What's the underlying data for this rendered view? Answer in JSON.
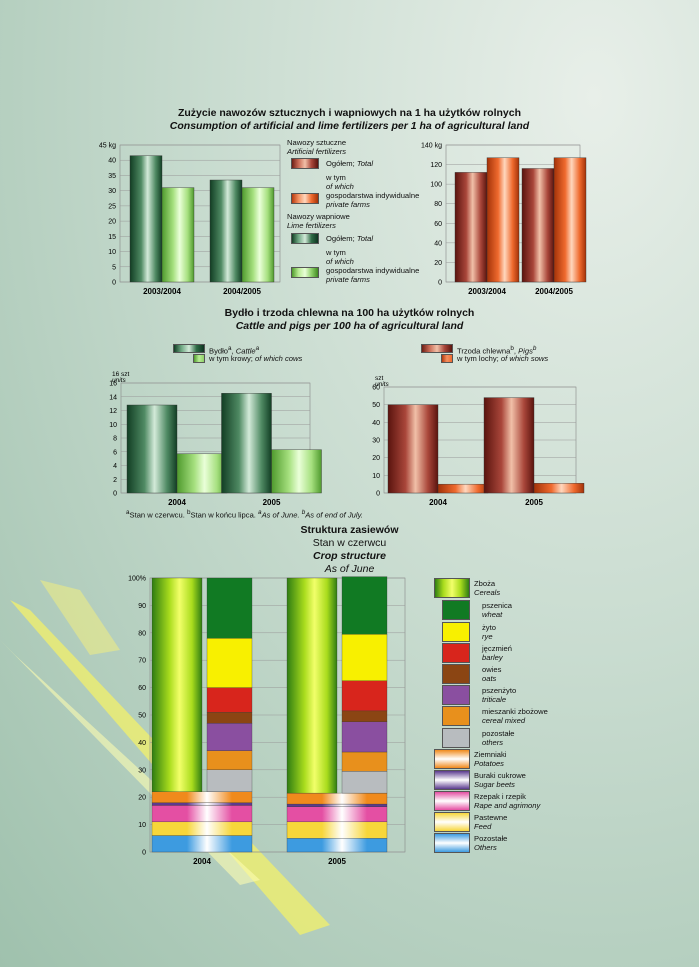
{
  "colors": {
    "green_dark": "#2e6b45",
    "green_light": "#8fd16a",
    "brown": "#a9463a",
    "orange": "#ef6a2e"
  },
  "section1": {
    "title_pl": "Zużycie nawozów sztucznych i wapniowych na 1 ha użytków rolnych",
    "title_en": "Consumption of artificial and lime fertilizers per 1 ha of agricultural land",
    "legend": {
      "artificial_pl": "Nawozy sztuczne",
      "artificial_en": "Artificial fertilizers",
      "total_pl": "Ogółem;",
      "total_en": "Total",
      "whichof_pl": "w tym",
      "whichof_en": "of which",
      "private_pl": "gospodarstwa indywidualne",
      "private_en": "private farms",
      "lime_pl": "Nawozy wapniowe",
      "lime_en": "Lime fertilizers"
    }
  },
  "section2": {
    "title_pl": "Bydło i trzoda chlewna na 100 ha użytków rolnych",
    "title_en": "Cattle and pigs per 100 ha of agricultural land",
    "legend": {
      "cattle_pl": "Bydło",
      "cattle_en": "Cattle",
      "cows_pl": "w tym krowy;",
      "cows_en": "of which cows",
      "pigs_pl": "Trzoda chlewna",
      "pigs_en": "Pigs",
      "sows_pl": "w tym lochy;",
      "sows_en": "of which sows"
    },
    "footnote": {
      "a_pl": "Stan w czerwcu.",
      "b_pl": "Stan w końcu lipca.",
      "a_en": "As of June.",
      "b_en": "As of end of July."
    }
  },
  "section3": {
    "title_pl": "Struktura zasiewów",
    "subtitle_pl": "Stan w czerwcu",
    "title_en": "Crop structure",
    "subtitle_en": "As of June"
  },
  "chart_data": [
    {
      "type": "bar",
      "categories": [
        "2003/2004",
        "2004/2005"
      ],
      "ylim": [
        0,
        45
      ],
      "yticks": [
        0,
        5,
        10,
        15,
        20,
        25,
        30,
        35,
        40,
        45
      ],
      "yunit": "kg",
      "series": [
        {
          "values": [
            41.5,
            33.5
          ]
        },
        {
          "values": [
            31,
            31
          ]
        }
      ]
    },
    {
      "type": "bar",
      "categories": [
        "2003/2004",
        "2004/2005"
      ],
      "ylim": [
        0,
        140
      ],
      "yticks": [
        0,
        20,
        40,
        60,
        80,
        100,
        120,
        140
      ],
      "yunit": "kg",
      "series": [
        {
          "values": [
            112,
            116
          ]
        },
        {
          "values": [
            127,
            127
          ]
        }
      ]
    },
    {
      "type": "bar",
      "categories": [
        "2004",
        "2005"
      ],
      "ylim": [
        0,
        16
      ],
      "yticks": [
        0,
        2,
        4,
        6,
        8,
        10,
        12,
        14,
        16
      ],
      "yunit_pl": "szt",
      "yunit_en": "units",
      "series": [
        {
          "values": [
            12.8,
            14.5
          ]
        },
        {
          "values": [
            5.7,
            6.3
          ]
        }
      ]
    },
    {
      "type": "bar",
      "categories": [
        "2004",
        "2005"
      ],
      "ylim": [
        0,
        60
      ],
      "yticks": [
        0,
        10,
        20,
        30,
        40,
        50,
        60
      ],
      "yunit_pl": "szt",
      "yunit_en": "units",
      "series": [
        {
          "values": [
            50,
            54
          ]
        },
        {
          "values": [
            5,
            5.5
          ]
        }
      ]
    },
    {
      "type": "bar",
      "stacked": true,
      "categories": [
        "2004",
        "2005"
      ],
      "ylim": [
        0,
        100
      ],
      "yticks": [
        "0",
        "10",
        "20",
        "30",
        "40",
        "50",
        "60",
        "70",
        "80",
        "90",
        "100%"
      ],
      "series": [
        {
          "name_pl": "Pozostałe",
          "name_en": "Others",
          "color": "#3d9be0",
          "values": [
            6,
            5
          ]
        },
        {
          "name_pl": "Pastewne",
          "name_en": "Feed",
          "color": "#f7d63a",
          "values": [
            5,
            6
          ]
        },
        {
          "name_pl": "Rzepak i rzepik",
          "name_en": "Rape and agrimony",
          "color": "#e44fa3",
          "values": [
            6,
            5.5
          ]
        },
        {
          "name_pl": "Buraki cukrowe",
          "name_en": "Sugar beets",
          "color": "#5b3a8e",
          "values": [
            1,
            1
          ]
        },
        {
          "name_pl": "Ziemniaki",
          "name_en": "Potatoes",
          "color": "#f08a1c",
          "values": [
            4,
            4
          ]
        },
        {
          "name_pl": "Zboża",
          "name_en": "Cereals",
          "color": "#7bbf1e",
          "values": [
            78,
            78.5
          ]
        }
      ],
      "cereal_breakdown": [
        {
          "name_pl": "pozostałe",
          "name_en": "others",
          "color": "#b8bcbf",
          "values": [
            8,
            8
          ]
        },
        {
          "name_pl": "mieszanki zbożowe",
          "name_en": "cereal mixed",
          "color": "#e8901c",
          "values": [
            7,
            7
          ]
        },
        {
          "name_pl": "pszenżyto",
          "name_en": "triticale",
          "color": "#8a4fa0",
          "values": [
            10,
            11
          ]
        },
        {
          "name_pl": "owies",
          "name_en": "oats",
          "color": "#8b4513",
          "values": [
            4,
            4
          ]
        },
        {
          "name_pl": "jęczmień",
          "name_en": "barley",
          "color": "#d8251c",
          "values": [
            9,
            11
          ]
        },
        {
          "name_pl": "żyto",
          "name_en": "rye",
          "color": "#f8f000",
          "values": [
            18,
            17
          ]
        },
        {
          "name_pl": "pszenica",
          "name_en": "wheat",
          "color": "#117a23",
          "values": [
            22,
            21
          ]
        }
      ]
    }
  ]
}
